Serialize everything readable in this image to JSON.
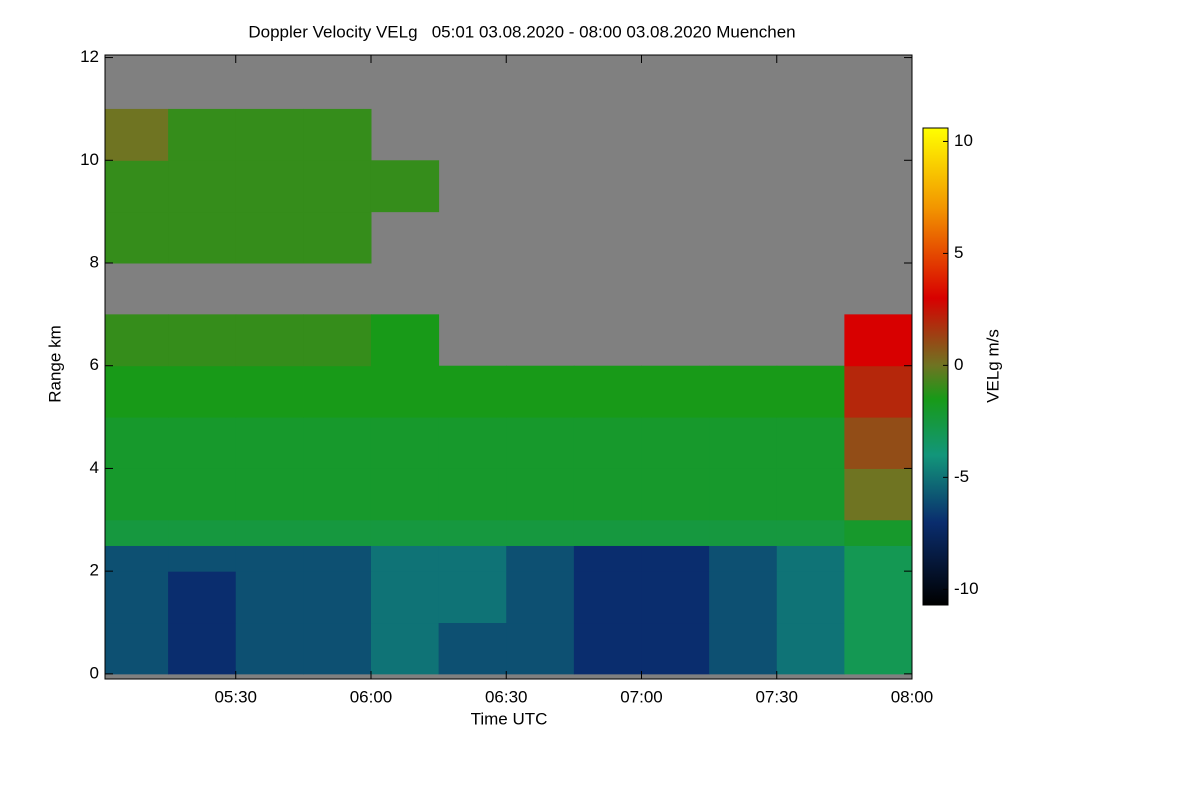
{
  "chart_data": {
    "type": "heatmap",
    "title": "Doppler Velocity VELg   05:01 03.08.2020 - 08:00 03.08.2020 Muenchen",
    "x_label": "Time UTC",
    "y_label": "Range km",
    "colorbar_label": "VELg m/s",
    "xlim": [
      5.0167,
      8.0
    ],
    "xticks": [
      {
        "value": 5.5,
        "label": "05:30"
      },
      {
        "value": 6.0,
        "label": "06:00"
      },
      {
        "value": 6.5,
        "label": "06:30"
      },
      {
        "value": 7.0,
        "label": "07:00"
      },
      {
        "value": 7.5,
        "label": "07:30"
      },
      {
        "value": 8.0,
        "label": "08:00"
      }
    ],
    "ylim": [
      -0.1,
      12.05
    ],
    "yticks": [
      0,
      2,
      4,
      6,
      8,
      10,
      12
    ],
    "clim": [
      -10.7,
      10.6
    ],
    "cticks": [
      -10,
      -5,
      0,
      5,
      10
    ],
    "colormap": [
      {
        "value": -10.7,
        "color": "#000000"
      },
      {
        "value": -7,
        "color": "#0a2d6e"
      },
      {
        "value": -4,
        "color": "#12967a"
      },
      {
        "value": -1.5,
        "color": "#189a18"
      },
      {
        "value": 0,
        "color": "#6f7422"
      },
      {
        "value": 3,
        "color": "#d80000"
      },
      {
        "value": 7,
        "color": "#f29400"
      },
      {
        "value": 10.6,
        "color": "#ffff00"
      }
    ],
    "null_color": "#808080",
    "xbins": [
      5.0167,
      5.25,
      5.5,
      5.75,
      6.0,
      6.25,
      6.5,
      6.75,
      7.0,
      7.25,
      7.5,
      7.75,
      8.0
    ],
    "ybins": [
      0,
      1,
      2,
      2.5,
      3,
      4,
      5,
      6,
      7,
      8,
      9,
      10,
      11,
      12
    ],
    "z": [
      [
        -6,
        -7,
        -6,
        -6,
        -5,
        -6,
        -6,
        -7,
        -7,
        -6,
        -5,
        -3
      ],
      [
        -6,
        -7,
        -6,
        -6,
        -5,
        -5,
        -6,
        -7,
        -7,
        -6,
        -5,
        -3
      ],
      [
        -6,
        -6,
        -6,
        -6,
        -5,
        -5,
        -6,
        -7,
        -7,
        -6,
        -5,
        -3
      ],
      [
        -2.5,
        -2.5,
        -2.5,
        -2.5,
        -2.5,
        -2.5,
        -2.5,
        -2.5,
        -2.5,
        -2.5,
        -2.5,
        -2
      ],
      [
        -2,
        -2,
        -2,
        -2,
        -2,
        -2,
        -2,
        -2,
        -2,
        -2,
        -2,
        0
      ],
      [
        -2,
        -2,
        -2,
        -2,
        -2,
        -2,
        -2,
        -2,
        -2,
        -2,
        -2,
        1
      ],
      [
        -1.5,
        -1.5,
        -1.5,
        -1.5,
        -1.5,
        -1.5,
        -1.5,
        -1.5,
        -1.5,
        -1.5,
        -1.5,
        2
      ],
      [
        -1,
        -1,
        -1,
        -1,
        -1.5,
        null,
        null,
        null,
        null,
        null,
        null,
        3
      ],
      [
        null,
        null,
        null,
        null,
        null,
        null,
        null,
        null,
        null,
        null,
        null,
        null
      ],
      [
        -1,
        -1,
        -1,
        -1,
        null,
        null,
        null,
        null,
        null,
        null,
        null,
        null
      ],
      [
        -1,
        -1,
        -1,
        -1,
        -1,
        null,
        null,
        null,
        null,
        null,
        null,
        null
      ],
      [
        0,
        -1,
        -1,
        -1,
        null,
        null,
        null,
        null,
        null,
        null,
        null,
        null
      ],
      [
        null,
        null,
        null,
        null,
        null,
        null,
        null,
        null,
        null,
        null,
        null,
        null
      ]
    ]
  }
}
